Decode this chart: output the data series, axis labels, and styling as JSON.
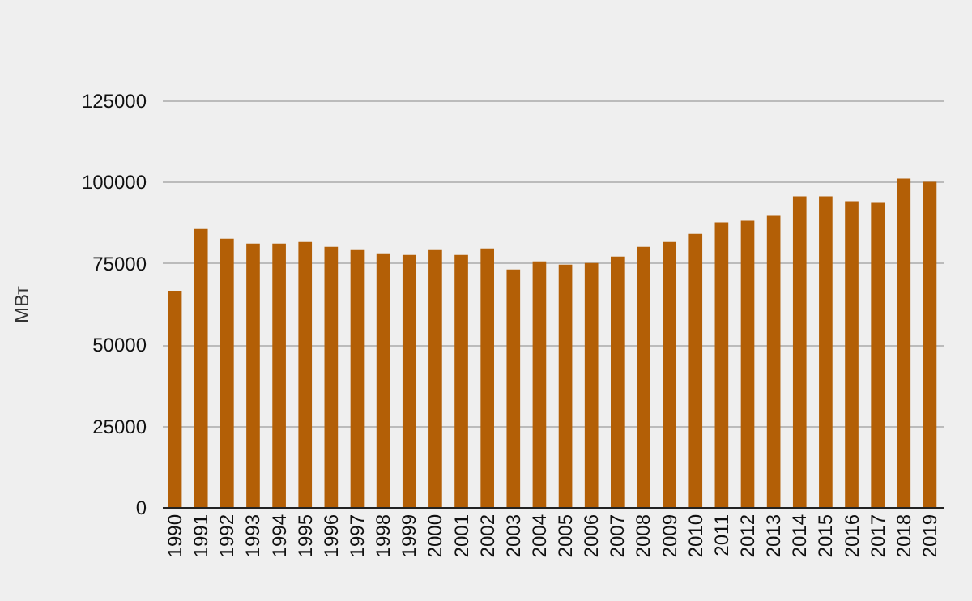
{
  "chart_data": {
    "type": "bar",
    "ylabel": "МВт",
    "categories": [
      "1990",
      "1991",
      "1992",
      "1993",
      "1994",
      "1995",
      "1996",
      "1997",
      "1998",
      "1999",
      "2000",
      "2001",
      "2002",
      "2003",
      "2004",
      "2005",
      "2006",
      "2007",
      "2008",
      "2009",
      "2010",
      "2011",
      "2012",
      "2013",
      "2014",
      "2015",
      "2016",
      "2017",
      "2018",
      "2019"
    ],
    "values": [
      66500,
      85500,
      82500,
      81000,
      81000,
      81500,
      80000,
      79000,
      78000,
      77500,
      79000,
      77500,
      79500,
      73000,
      75500,
      74500,
      75000,
      77000,
      80000,
      81500,
      84000,
      87500,
      88000,
      89500,
      95500,
      95500,
      94000,
      93500,
      101000,
      100000
    ],
    "color": "#b35f06",
    "ylim": [
      0,
      125000
    ],
    "yticks": [
      0,
      25000,
      50000,
      75000,
      100000,
      125000
    ],
    "grid": "y"
  }
}
